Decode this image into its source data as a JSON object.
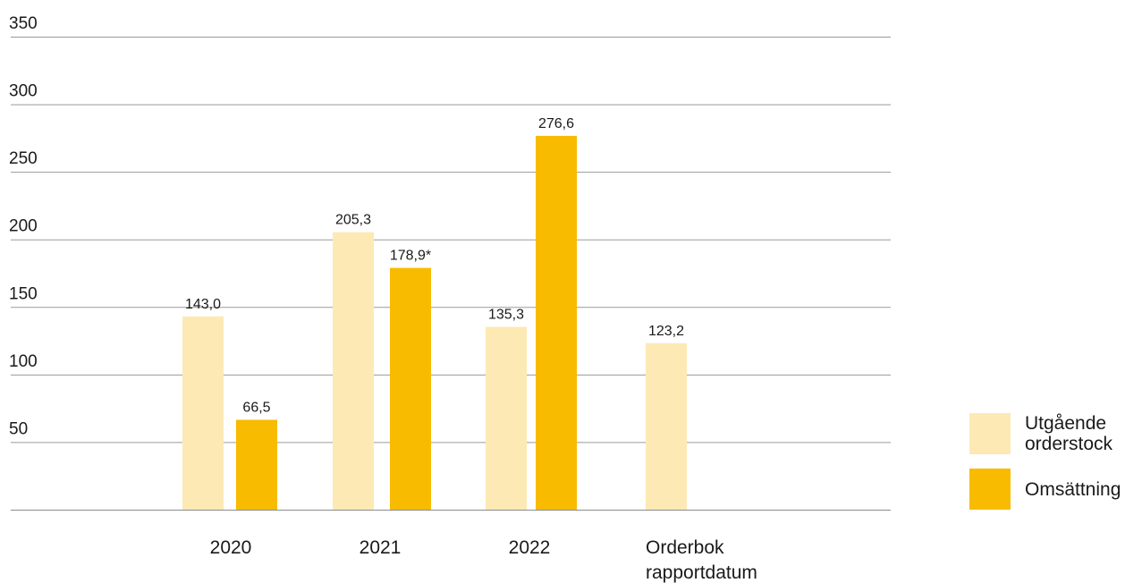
{
  "chart_data": {
    "type": "bar",
    "categories": [
      "2020",
      "2021",
      "2022",
      "Orderbok\nrapportdatum"
    ],
    "series": [
      {
        "name": "Utgående orderstock",
        "color": "#fde9b4",
        "values": [
          143.0,
          205.3,
          135.3,
          123.2
        ],
        "labels": [
          "143,0",
          "205,3",
          "135,3",
          "123,2"
        ]
      },
      {
        "name": "Omsättning",
        "color": "#f8bb00",
        "values": [
          66.5,
          178.9,
          276.6,
          null
        ],
        "labels": [
          "66,5",
          "178,9*",
          "276,6",
          ""
        ]
      }
    ],
    "yticks": [
      50,
      100,
      150,
      200,
      250,
      300,
      350
    ],
    "ylim": [
      0,
      350
    ],
    "grid": true,
    "legend_position": "bottom-right",
    "title": "",
    "xlabel": "",
    "ylabel": ""
  }
}
